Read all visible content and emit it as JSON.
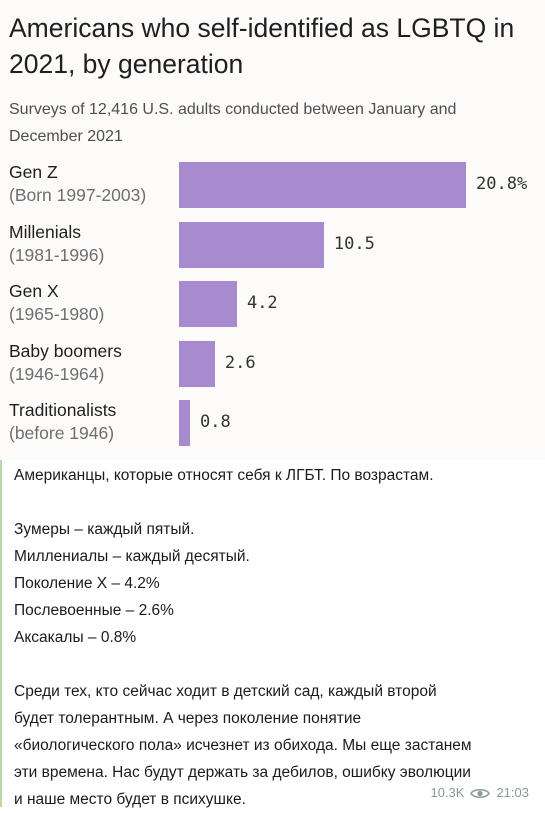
{
  "chart_data": {
    "type": "bar",
    "orientation": "horizontal",
    "title": "Americans who self-identified as LGBTQ in 2021, by generation",
    "subtitle": "Surveys of 12,416 U.S. adults conducted between January and December 2021",
    "categories": [
      {
        "name": "Gen Z",
        "years": "(Born 1997-2003)"
      },
      {
        "name": "Millenials",
        "years": "(1981-1996)"
      },
      {
        "name": "Gen X",
        "years": "(1965-1980)"
      },
      {
        "name": "Baby boomers",
        "years": "(1946-1964)"
      },
      {
        "name": "Traditionalists",
        "years": "(before 1946)"
      }
    ],
    "values": [
      20.8,
      10.5,
      4.2,
      2.6,
      0.8
    ],
    "value_labels": [
      "20.8%",
      "10.5",
      "4.2",
      "2.6",
      "0.8"
    ],
    "bar_color": "#a88acf"
  },
  "message": {
    "lines": [
      "Американцы, которые относят себя к ЛГБТ. По возрастам.",
      "",
      "Зумеры – каждый пятый.",
      "Миллениалы – каждый десятый.",
      "Поколение Х – 4.2%",
      "Послевоенные – 2.6%",
      "Аксакалы – 0.8%",
      "",
      "Среди тех, кто сейчас ходит в детский сад, каждый второй",
      "будет толерантным. А через поколение понятие",
      "«биологического пола» исчезнет из обихода. Мы еще застанем",
      "эти времена. Нас будут держать за дебилов, ошибку эволюции",
      "и наше место будет в психушке."
    ],
    "views": "10.3K",
    "time": "21:03"
  },
  "colors": {
    "accent_edge": "#b9d7a8",
    "meta_text": "#8a9a8f"
  }
}
